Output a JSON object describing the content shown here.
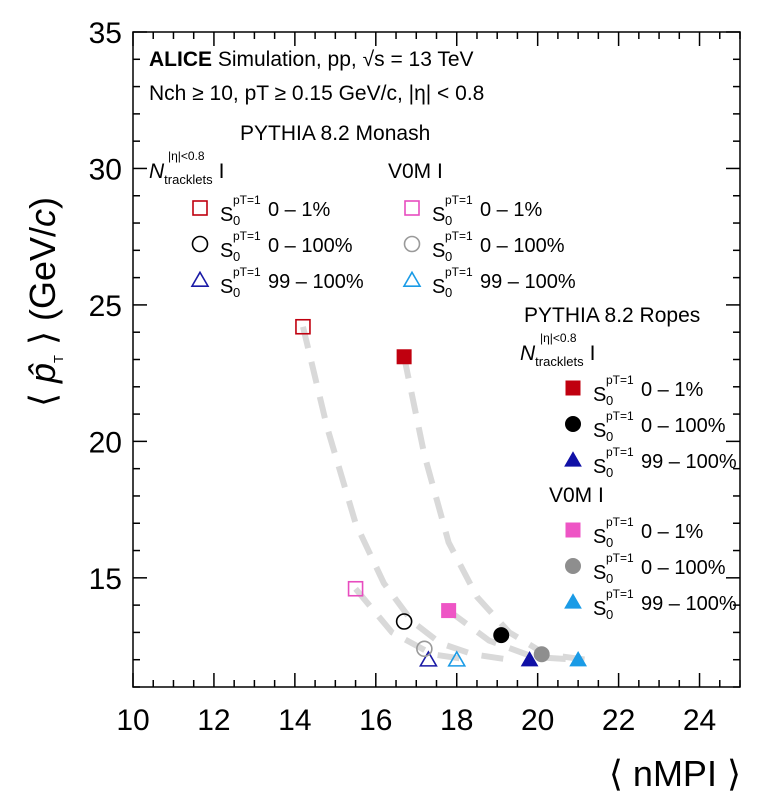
{
  "chart_data": {
    "type": "scatter",
    "xlabel": "⟨ nMPI ⟩",
    "ylabel": "⟨ p̂T ⟩ (GeV/c)",
    "xlim": [
      10,
      25
    ],
    "ylim": [
      11,
      35
    ],
    "x_ticks": [
      "10",
      "12",
      "14",
      "16",
      "18",
      "20",
      "22",
      "24"
    ],
    "y_ticks": [
      "15",
      "20",
      "25",
      "30",
      "35"
    ],
    "header": {
      "experiment": "ALICE",
      "line1_rest": " Simulation,  pp, √s = 13 TeV",
      "line2": "Nch ≥ 10, pT ≥ 0.15 GeV/c, |η| < 0.8"
    },
    "groups": [
      {
        "title": "PYTHIA 8.2 Monash",
        "filled": false
      },
      {
        "title": "PYTHIA 8.2 Ropes",
        "filled": true
      }
    ],
    "estimators": {
      "tracklets_main": "N",
      "tracklets_sub": "tracklets",
      "tracklets_sup": "|η|<0.8",
      "v0m": "V0M I",
      "bar": "I"
    },
    "sphero": {
      "main": "S",
      "sub": "0",
      "sup": "pT=1"
    },
    "series": [
      {
        "name": "0 – 1%",
        "group": "PYTHIA 8.2 Monash",
        "estimator": "tracklets",
        "marker": "square",
        "color": "#c0000f",
        "filled": false,
        "x": [
          14.2
        ],
        "y": [
          24.2
        ]
      },
      {
        "name": "0 – 100%",
        "group": "PYTHIA 8.2 Monash",
        "estimator": "tracklets",
        "marker": "circle",
        "color": "#000000",
        "filled": false,
        "x": [
          16.7
        ],
        "y": [
          13.4
        ]
      },
      {
        "name": "99 – 100%",
        "group": "PYTHIA 8.2 Monash",
        "estimator": "tracklets",
        "marker": "triangle",
        "color": "#1a1aa6",
        "filled": false,
        "x": [
          17.3
        ],
        "y": [
          12.0
        ]
      },
      {
        "name": "0 – 1%",
        "group": "PYTHIA 8.2 Monash",
        "estimator": "V0M",
        "marker": "square",
        "color": "#e84cbf",
        "filled": false,
        "x": [
          15.5
        ],
        "y": [
          14.6
        ]
      },
      {
        "name": "0 – 100%",
        "group": "PYTHIA 8.2 Monash",
        "estimator": "V0M",
        "marker": "circle",
        "color": "#9a9a9a",
        "filled": false,
        "x": [
          17.2
        ],
        "y": [
          12.4
        ]
      },
      {
        "name": "99 – 100%",
        "group": "PYTHIA 8.2 Monash",
        "estimator": "V0M",
        "marker": "triangle",
        "color": "#1a9be6",
        "filled": false,
        "x": [
          18.0
        ],
        "y": [
          12.0
        ]
      },
      {
        "name": "0 – 1%",
        "group": "PYTHIA 8.2 Ropes",
        "estimator": "tracklets",
        "marker": "square",
        "color": "#c0000f",
        "filled": true,
        "x": [
          16.7
        ],
        "y": [
          23.1
        ]
      },
      {
        "name": "0 – 100%",
        "group": "PYTHIA 8.2 Ropes",
        "estimator": "tracklets",
        "marker": "circle",
        "color": "#000000",
        "filled": true,
        "x": [
          19.1
        ],
        "y": [
          12.9
        ]
      },
      {
        "name": "99 – 100%",
        "group": "PYTHIA 8.2 Ropes",
        "estimator": "tracklets",
        "marker": "triangle",
        "color": "#1010a6",
        "filled": true,
        "x": [
          19.8
        ],
        "y": [
          12.0
        ]
      },
      {
        "name": "0 – 1%",
        "group": "PYTHIA 8.2 Ropes",
        "estimator": "V0M",
        "marker": "square",
        "color": "#ee55c5",
        "filled": true,
        "x": [
          17.8
        ],
        "y": [
          13.8
        ]
      },
      {
        "name": "0 – 100%",
        "group": "PYTHIA 8.2 Ropes",
        "estimator": "V0M",
        "marker": "circle",
        "color": "#8e8e8e",
        "filled": true,
        "x": [
          20.1
        ],
        "y": [
          12.2
        ]
      },
      {
        "name": "99 – 100%",
        "group": "PYTHIA 8.2 Ropes",
        "estimator": "V0M",
        "marker": "triangle",
        "color": "#1a9be6",
        "filled": true,
        "x": [
          21.0
        ],
        "y": [
          12.0
        ]
      }
    ],
    "trend_curves": [
      {
        "group": "PYTHIA 8.2 Monash",
        "color": "#d9d9d9",
        "x": [
          14.2,
          14.8,
          15.5,
          16.2,
          16.9,
          17.6,
          18.4,
          19.3
        ],
        "y": [
          24.2,
          20.5,
          17.0,
          14.8,
          13.4,
          12.6,
          12.2,
          12.0
        ]
      },
      {
        "group": "PYTHIA 8.2 Ropes",
        "color": "#d9d9d9",
        "x": [
          16.7,
          17.2,
          17.8,
          18.5,
          19.3,
          20.2,
          21.2
        ],
        "y": [
          23.1,
          19.5,
          16.3,
          14.3,
          13.0,
          12.2,
          12.0
        ]
      },
      {
        "group": "PYTHIA 8.2 Monash",
        "color": "#d9d9d9",
        "x": [
          15.5,
          16.4,
          17.4,
          18.3
        ],
        "y": [
          14.6,
          13.0,
          12.2,
          12.0
        ]
      },
      {
        "group": "PYTHIA 8.2 Ropes",
        "color": "#d9d9d9",
        "x": [
          17.8,
          18.8,
          19.9,
          21.0
        ],
        "y": [
          13.8,
          12.7,
          12.1,
          12.0
        ]
      }
    ]
  }
}
